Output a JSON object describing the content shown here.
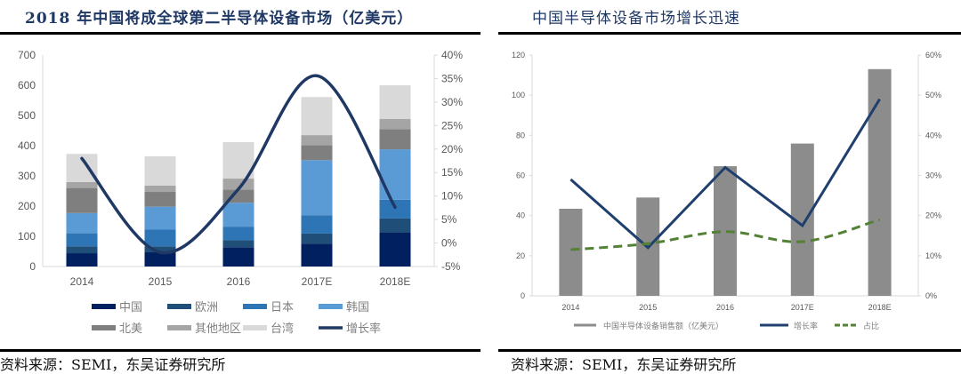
{
  "left_panel": {
    "title": "2018 年中国将成全球第二半导体设备市场（亿美元）",
    "source": "资料来源：SEMI，东吴证券研究所"
  },
  "right_panel": {
    "title": "中国半导体设备市场增长迅速",
    "source": "资料来源：SEMI，东吴证券研究所"
  },
  "chart_data": [
    {
      "type": "bar",
      "stacked": true,
      "title": "2018 年中国将成全球第二半导体设备市场（亿美元）",
      "categories": [
        "2014",
        "2015",
        "2016",
        "2017E",
        "2018E"
      ],
      "series": [
        {
          "name": "中国",
          "color": "#002060",
          "values": [
            44,
            47,
            64,
            76,
            114
          ]
        },
        {
          "name": "欧洲",
          "color": "#1f4e79",
          "values": [
            23,
            20,
            23,
            33,
            45
          ]
        },
        {
          "name": "日本",
          "color": "#2e75b6",
          "values": [
            43,
            55,
            45,
            61,
            62
          ]
        },
        {
          "name": "韩国",
          "color": "#5b9bd5",
          "values": [
            67,
            76,
            79,
            182,
            167
          ]
        },
        {
          "name": "北美",
          "color": "#7f7f7f",
          "values": [
            83,
            49,
            44,
            50,
            67
          ]
        },
        {
          "name": "其他地区",
          "color": "#a5a5a5",
          "values": [
            20,
            21,
            36,
            33,
            34
          ]
        },
        {
          "name": "台湾",
          "color": "#d9d9d9",
          "values": [
            93,
            97,
            121,
            126,
            111
          ]
        }
      ],
      "line_series": {
        "name": "增长率",
        "color": "#203864",
        "axis": "right",
        "smooth": true,
        "values": [
          18.0,
          -2.0,
          11.5,
          35.6,
          7.6
        ]
      },
      "ylim": [
        0,
        700
      ],
      "yticks": [
        "0",
        "100",
        "200",
        "300",
        "400",
        "500",
        "600",
        "700"
      ],
      "y2lim": [
        -5,
        40
      ],
      "y2ticks": [
        "-5%",
        "0%",
        "5%",
        "10%",
        "15%",
        "20%",
        "25%",
        "30%",
        "35%",
        "40%"
      ],
      "legend": [
        "中国",
        "欧洲",
        "日本",
        "韩国",
        "北美",
        "其他地区",
        "台湾",
        "增长率"
      ],
      "legend_position": "bottom",
      "grid": false
    },
    {
      "type": "bar",
      "title": "中国半导体设备市场增长迅速",
      "categories": [
        "2014",
        "2015",
        "2016",
        "2017E",
        "2018E"
      ],
      "series": [
        {
          "name": "中国半导体设备销售额（亿美元）",
          "color": "#8c8c8c",
          "values": [
            43.4,
            49.0,
            64.6,
            75.9,
            113.0
          ]
        }
      ],
      "line_series": [
        {
          "name": "增长率",
          "color": "#1f3f6e",
          "axis": "right",
          "style": "solid",
          "values": [
            29,
            12,
            32,
            17.5,
            49
          ]
        },
        {
          "name": "占比",
          "color": "#548235",
          "axis": "right",
          "style": "dashed",
          "values": [
            11.5,
            13,
            16,
            13.5,
            19
          ]
        }
      ],
      "ylim": [
        0,
        120
      ],
      "yticks": [
        "0",
        "20",
        "40",
        "60",
        "80",
        "100",
        "120"
      ],
      "y2lim": [
        0,
        60
      ],
      "y2ticks": [
        "0%",
        "10%",
        "20%",
        "30%",
        "40%",
        "50%",
        "60%"
      ],
      "legend": [
        "中国半导体设备销售额（亿美元）",
        "增长率",
        "占比"
      ],
      "legend_position": "bottom",
      "grid": false
    }
  ]
}
